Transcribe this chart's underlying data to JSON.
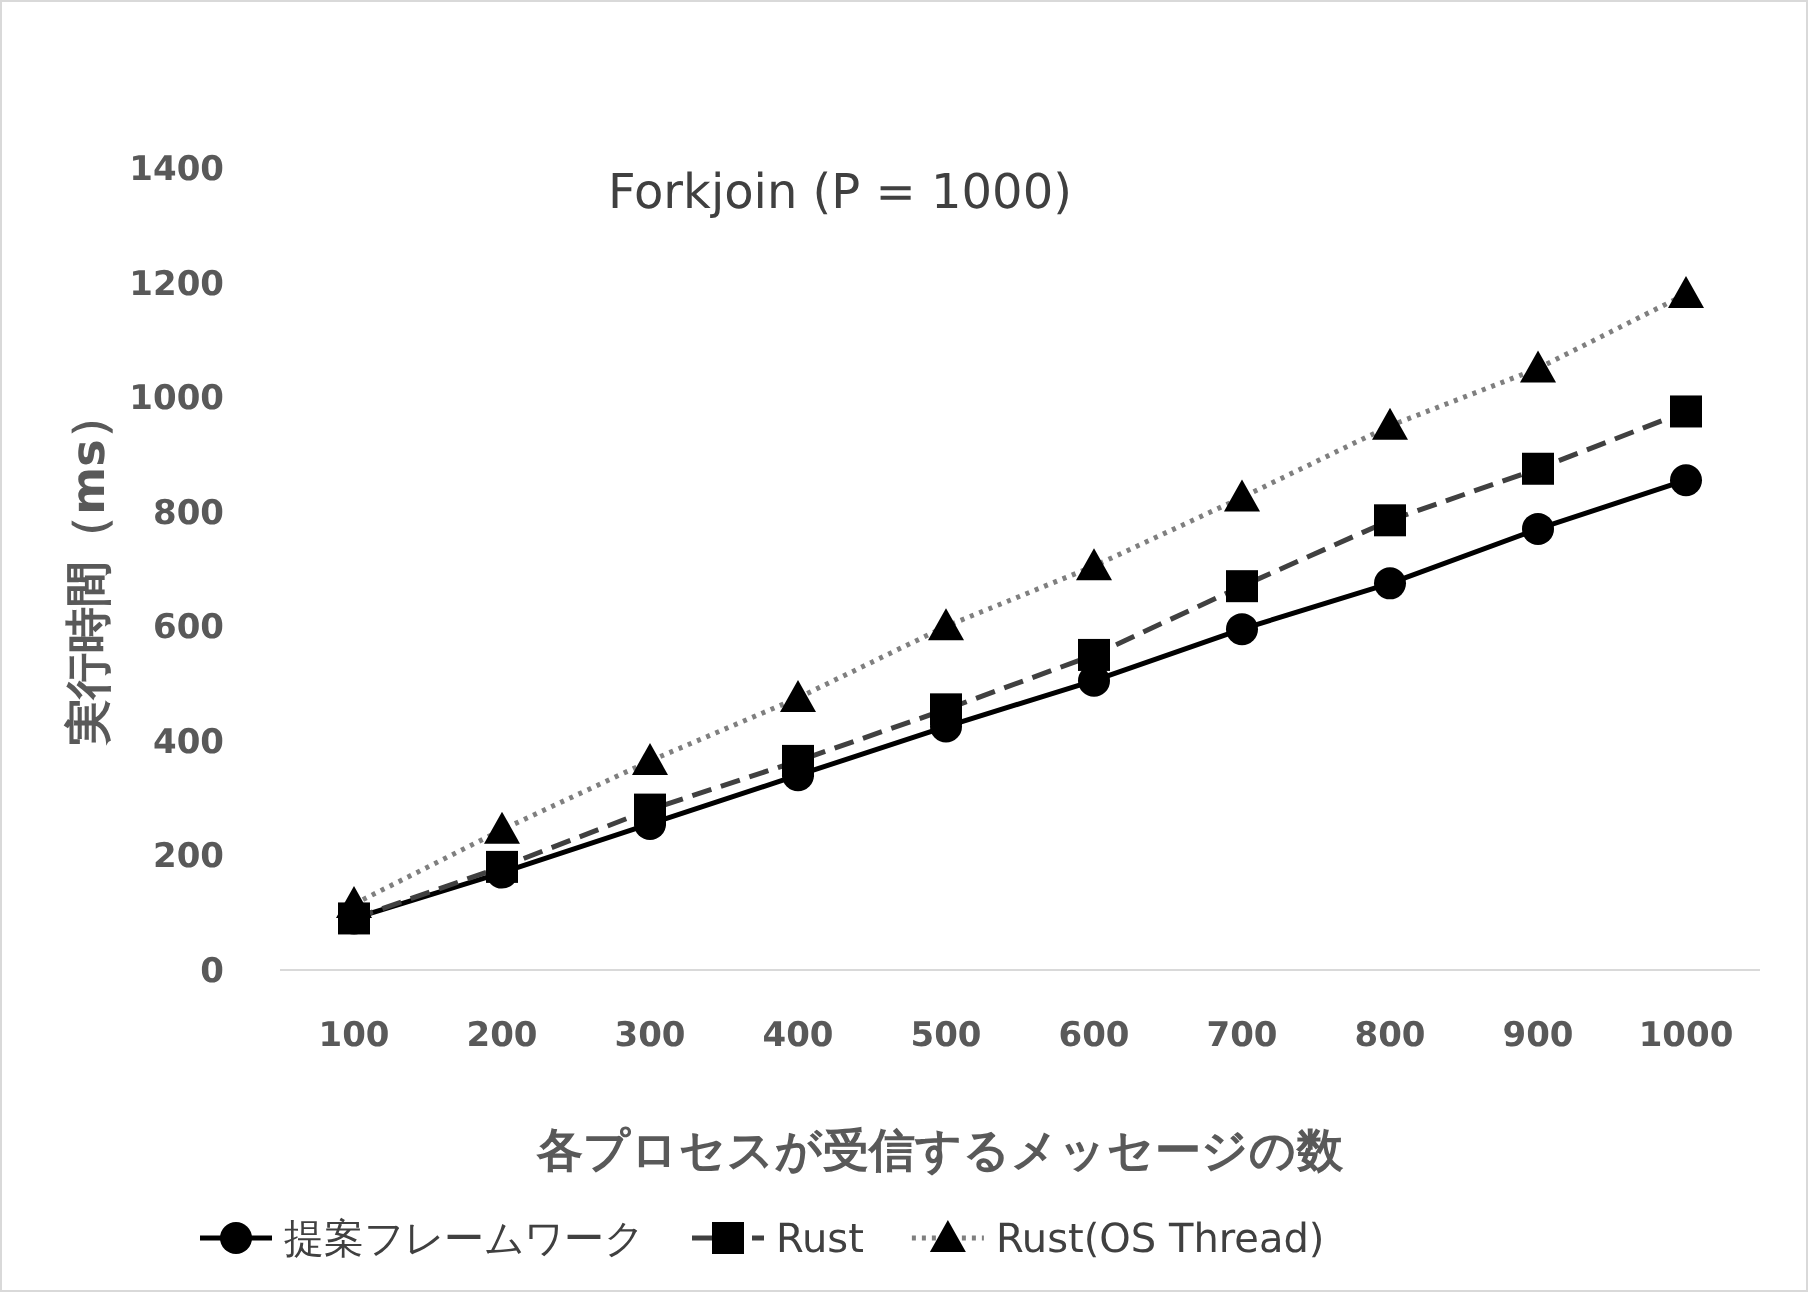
{
  "chart_data": {
    "type": "line",
    "title": "Forkjoin (P = 1000)",
    "xlabel": "各プロセスが受信するメッセージの数",
    "ylabel": "実行時間（ms）",
    "categories": [
      "100",
      "200",
      "300",
      "400",
      "500",
      "600",
      "700",
      "800",
      "900",
      "1000"
    ],
    "ylim": [
      0,
      1400
    ],
    "yticks": [
      0,
      200,
      400,
      600,
      800,
      1000,
      1200,
      1400
    ],
    "grid": false,
    "legend": "bottom",
    "series": [
      {
        "name": "提案フレームワーク",
        "color": "#000000",
        "marker": "circle",
        "line_style": "solid",
        "values": [
          90,
          170,
          255,
          340,
          425,
          505,
          595,
          675,
          770,
          855
        ]
      },
      {
        "name": "Rust",
        "color": "#000000",
        "marker": "square",
        "line_style": "dashed",
        "values": [
          90,
          180,
          280,
          365,
          455,
          550,
          670,
          785,
          875,
          975
        ]
      },
      {
        "name": "Rust(OS Thread)",
        "color": "#000000",
        "marker": "triangle",
        "line_style": "dotted",
        "values": [
          115,
          245,
          365,
          475,
          600,
          705,
          825,
          950,
          1050,
          1180
        ]
      }
    ]
  }
}
